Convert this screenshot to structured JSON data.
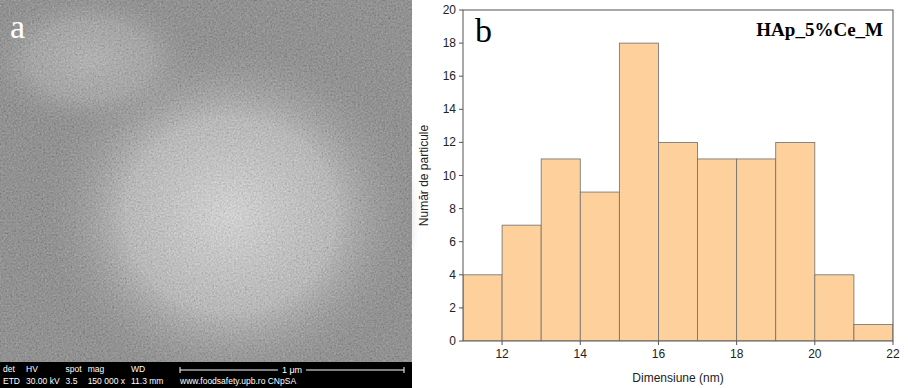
{
  "micrograph": {
    "label": "a",
    "info_header": [
      "det",
      "HV",
      "spot",
      "mag",
      "WD"
    ],
    "info_values": [
      "ETD",
      "30.00 kV",
      "3.5",
      "150 000 x",
      "11.3 mm"
    ],
    "scale_bar": "1 μm",
    "footer": "www.foodsafety.upb.ro CNpSA"
  },
  "chart_data": {
    "type": "histogram",
    "panel_label": "b",
    "title": "HAp_5%Ce_M",
    "x_label": "Dimensiune (nm)",
    "y_label": "Număr de particule",
    "bins": [
      11,
      12,
      13,
      14,
      15,
      16,
      17,
      18,
      19,
      20,
      21,
      22
    ],
    "values": [
      4,
      7,
      11,
      9,
      18,
      12,
      11,
      11,
      12,
      4,
      1
    ],
    "color": "#fdd09c",
    "xlim": [
      11,
      22
    ],
    "xticks": [
      12,
      14,
      16,
      18,
      20,
      22
    ],
    "ylim": [
      0,
      20
    ],
    "yticks": [
      0,
      2,
      4,
      6,
      8,
      10,
      12,
      14,
      16,
      18,
      20
    ],
    "grid": false
  }
}
